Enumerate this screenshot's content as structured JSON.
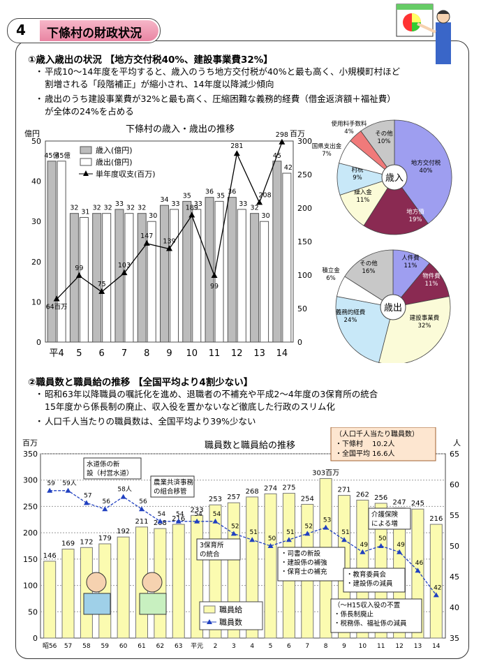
{
  "header": {
    "number": "4",
    "title": "下條村の財政状況"
  },
  "section1": {
    "heading": "①歳入歳出の状況 【地方交付税40%、建設事業費32%】",
    "bullets": [
      {
        "line1": "平成10～14年度を平均すると、歳入のうち地方交付税が40%と最も高く、小規模町村ほど",
        "line2": "割増される「段階補正」が縮小され、14年度以降減少傾向"
      },
      {
        "line1": "歳出のうち建設事業費が32%と最も高く、圧縮困難な義務的経費（借金返済額＋福祉費）",
        "line2": "が全体の24%を占める"
      }
    ]
  },
  "section2": {
    "heading": "②職員数と職員給の推移 【全国平均より4割少ない】",
    "bullets": [
      {
        "line1": "昭和63年以降職員の嘱託化を進め、退職者の不補充や平成2～4年度の3保育所の統合",
        "line2": "15年度から係長制の廃止、収入役を置かないなど徹底した行政のスリム化"
      },
      {
        "line1": "人口千人当たりの職員数は、全国平均より39%少ない",
        "line2": ""
      }
    ]
  },
  "chart_data": [
    {
      "type": "bar",
      "title": "下條村の歳入・歳出の推移",
      "ylabel": "億円",
      "y2label": "百万",
      "ylim": [
        0,
        50
      ],
      "y2lim": [
        0,
        300
      ],
      "yticks": [
        "0",
        "10",
        "20",
        "30",
        "40",
        "50"
      ],
      "y2ticks": [
        "0",
        "50",
        "100",
        "150",
        "200",
        "250",
        "300"
      ],
      "categories": [
        "平4",
        "5",
        "6",
        "7",
        "8",
        "9",
        "10",
        "11",
        "12",
        "13",
        "14"
      ],
      "series": [
        {
          "name": "歳入(億円)",
          "values": [
            45,
            32,
            32,
            33,
            32,
            34,
            35,
            36,
            36,
            32,
            45
          ],
          "labels": [
            "45億",
            "32",
            "32",
            "33",
            "32",
            "34",
            "35",
            "36",
            "36",
            "32",
            "45"
          ]
        },
        {
          "name": "歳出(億円)",
          "values": [
            45,
            31,
            32,
            32,
            30,
            33,
            33,
            35,
            33,
            30,
            42
          ],
          "labels": [
            "45億",
            "31",
            "32",
            "32",
            "30",
            "33",
            "33",
            "35",
            "33",
            "30",
            "42"
          ]
        },
        {
          "name": "単年度収支(百万)",
          "axis": "right",
          "values": [
            64,
            99,
            75,
            103,
            147,
            139,
            189,
            99,
            281,
            208,
            298
          ],
          "labels": [
            "64百万",
            "99",
            "75",
            "103",
            "147",
            "139",
            "189",
            "99",
            "281",
            "208",
            "298"
          ]
        }
      ],
      "grid": false,
      "legend": "top-left"
    },
    {
      "type": "pie",
      "center_label": "歳入",
      "slices": [
        {
          "label": "地方交付税",
          "value": 40,
          "pct": "40%",
          "color": "#9e9ef0"
        },
        {
          "label": "地方債",
          "value": 19,
          "pct": "19%",
          "color": "#8a2a52"
        },
        {
          "label": "繰入金",
          "value": 11,
          "pct": "11%",
          "color": "#fbfbd8"
        },
        {
          "label": "村税",
          "value": 9,
          "pct": "9%",
          "color": "#c8e8f8"
        },
        {
          "label": "国県支出金",
          "value": 7,
          "pct": "7%",
          "color": "#ffffff"
        },
        {
          "label": "使用料手数料",
          "value": 4,
          "pct": "4%",
          "color": "#f07a7a"
        },
        {
          "label": "その他",
          "value": 10,
          "pct": "10%",
          "color": "#c8c8c8"
        }
      ]
    },
    {
      "type": "pie",
      "center_label": "歳出",
      "slices": [
        {
          "label": "人件費",
          "value": 11,
          "pct": "11%",
          "color": "#9e9ef0"
        },
        {
          "label": "物件費",
          "value": 11,
          "pct": "11%",
          "color": "#8a2a52"
        },
        {
          "label": "建設事業費",
          "value": 32,
          "pct": "32%",
          "color": "#fbfbd8"
        },
        {
          "label": "義務的経費",
          "value": 24,
          "pct": "24%",
          "color": "#c8e8f8"
        },
        {
          "label": "積立金",
          "value": 6,
          "pct": "6%",
          "color": "#ffffff"
        },
        {
          "label": "その他",
          "value": 16,
          "pct": "16%",
          "color": "#c8c8c8"
        }
      ]
    },
    {
      "type": "bar",
      "title": "職員数と職員給の推移",
      "ylabel": "百万",
      "y2label": "人",
      "ylim": [
        0,
        350
      ],
      "y2lim": [
        35,
        65
      ],
      "yticks": [
        "0",
        "50",
        "100",
        "150",
        "200",
        "250",
        "300",
        "350"
      ],
      "y2ticks": [
        "35",
        "40",
        "45",
        "50",
        "55",
        "60",
        "65"
      ],
      "categories": [
        "昭56",
        "57",
        "58",
        "59",
        "60",
        "61",
        "62",
        "63",
        "平元",
        "2",
        "3",
        "4",
        "5",
        "6",
        "7",
        "8",
        "9",
        "10",
        "11",
        "12",
        "13",
        "14"
      ],
      "series": [
        {
          "name": "職員給",
          "values": [
            146,
            169,
            172,
            179,
            192,
            211,
            208,
            216,
            233,
            253,
            257,
            268,
            274,
            275,
            254,
            303,
            271,
            262,
            256,
            247,
            245,
            216
          ],
          "labels": [
            "146",
            "169",
            "172",
            "179",
            "192",
            "211",
            "208",
            "216",
            "233",
            "253",
            "257",
            "268",
            "274",
            "275",
            "254",
            "303百万",
            "271",
            "262",
            "256",
            "247",
            "245",
            "216"
          ]
        },
        {
          "name": "職員数",
          "axis": "right",
          "values": [
            59,
            59,
            57,
            56,
            58,
            56,
            54,
            54,
            54,
            54,
            52,
            51,
            50,
            51,
            52,
            53,
            51,
            49,
            50,
            49,
            46,
            42
          ],
          "labels": [
            "59",
            "59人",
            "57",
            "56",
            "58人",
            "56",
            "54",
            "54",
            "54",
            "54",
            "52",
            "51",
            "50",
            "51",
            "52",
            "53",
            "51",
            "49",
            "50",
            "49",
            "46",
            "42"
          ]
        }
      ],
      "annotations": [
        "水道係の新設（村営水道）",
        "農業共済事務の組合移管",
        "3保育所の統合",
        "司書の新設",
        "建設係の補強",
        "保育士の補充",
        "介護保険による増",
        "教育委員会",
        "建設係の減員",
        "（～H15収入役の不置",
        "係長制廃止",
        "税務係、福祉係の減員"
      ],
      "info_box": {
        "title": "（人口千人当たり職員数）",
        "line1": "・下條村　 10.2人",
        "line2": "・全国平均 16.6人"
      },
      "legend": "bottom-left"
    }
  ]
}
